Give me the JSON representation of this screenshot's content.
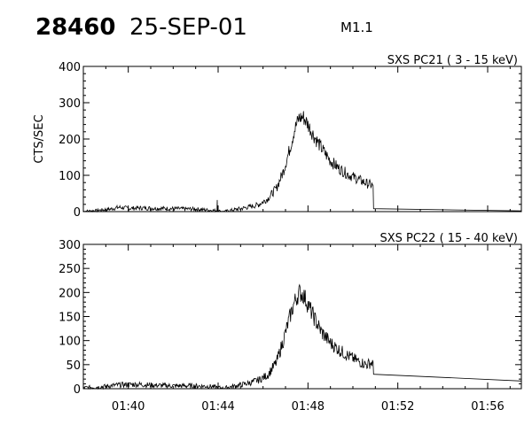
{
  "header": {
    "event_number": "28460",
    "date": "25-SEP-01",
    "flare_class": "M1.1"
  },
  "chart_data": [
    {
      "type": "line",
      "title": "SXS PC21  (  3 - 15 keV)",
      "ylabel": "CTS/SEC",
      "xlabel": "",
      "x_unit": "minutes after 01:00 UT",
      "xlim": [
        38,
        57.5
      ],
      "ylim": [
        0,
        400
      ],
      "yticks": [
        0,
        100,
        200,
        300,
        400
      ],
      "grid": false,
      "series": [
        {
          "points": [
            [
              38.0,
              1
            ],
            [
              38.6,
              3
            ],
            [
              39.2,
              7
            ],
            [
              39.6,
              12
            ],
            [
              40.0,
              9
            ],
            [
              40.6,
              10
            ],
            [
              41.4,
              9
            ],
            [
              42.2,
              8
            ],
            [
              43.0,
              7
            ],
            [
              43.6,
              4
            ],
            [
              43.95,
              3
            ],
            [
              43.96,
              32
            ],
            [
              43.97,
              3
            ],
            [
              44.2,
              0
            ],
            [
              44.8,
              6
            ],
            [
              45.4,
              13
            ],
            [
              45.8,
              19
            ],
            [
              46.2,
              35
            ],
            [
              46.6,
              65
            ],
            [
              46.9,
              110
            ],
            [
              47.2,
              175
            ],
            [
              47.4,
              225
            ],
            [
              47.6,
              258
            ],
            [
              47.8,
              260
            ],
            [
              48.0,
              240
            ],
            [
              48.3,
              205
            ],
            [
              48.6,
              175
            ],
            [
              49.0,
              140
            ],
            [
              49.4,
              118
            ],
            [
              49.8,
              102
            ],
            [
              50.2,
              90
            ],
            [
              50.6,
              78
            ],
            [
              50.9,
              72
            ],
            [
              50.92,
              8
            ],
            [
              57.5,
              2
            ]
          ]
        }
      ]
    },
    {
      "type": "line",
      "title": "SXS PC22  ( 15 - 40 keV)",
      "ylabel": "",
      "xlabel": "",
      "x_unit": "minutes after 01:00 UT",
      "xlim": [
        38,
        57.5
      ],
      "ylim": [
        0,
        300
      ],
      "yticks": [
        0,
        50,
        100,
        150,
        200,
        250,
        300
      ],
      "xticks": [
        {
          "value": 40,
          "label": "01:40"
        },
        {
          "value": 44,
          "label": "01:44"
        },
        {
          "value": 48,
          "label": "01:48"
        },
        {
          "value": 52,
          "label": "01:52"
        },
        {
          "value": 56,
          "label": "01:56"
        }
      ],
      "grid": false,
      "series": [
        {
          "points": [
            [
              38.0,
              2
            ],
            [
              38.8,
              4
            ],
            [
              39.6,
              8
            ],
            [
              40.4,
              9
            ],
            [
              41.2,
              7
            ],
            [
              42.0,
              6
            ],
            [
              42.8,
              6
            ],
            [
              43.6,
              5
            ],
            [
              44.0,
              3
            ],
            [
              44.2,
              1
            ],
            [
              44.8,
              6
            ],
            [
              45.4,
              12
            ],
            [
              45.8,
              18
            ],
            [
              46.2,
              28
            ],
            [
              46.6,
              55
            ],
            [
              46.9,
              100
            ],
            [
              47.2,
              150
            ],
            [
              47.4,
              180
            ],
            [
              47.6,
              200
            ],
            [
              47.8,
              195
            ],
            [
              48.0,
              175
            ],
            [
              48.3,
              145
            ],
            [
              48.6,
              118
            ],
            [
              49.0,
              95
            ],
            [
              49.4,
              80
            ],
            [
              49.8,
              68
            ],
            [
              50.2,
              58
            ],
            [
              50.6,
              50
            ],
            [
              50.9,
              55
            ],
            [
              50.92,
              30
            ],
            [
              57.5,
              16
            ]
          ]
        }
      ]
    }
  ]
}
